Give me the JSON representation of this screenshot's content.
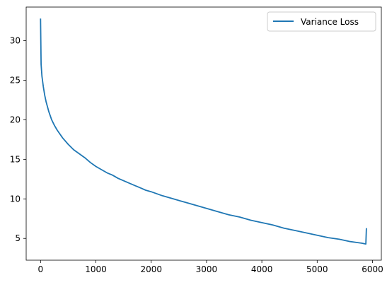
{
  "chart_data": {
    "type": "line",
    "title": "",
    "xlabel": "",
    "ylabel": "",
    "xlim": [
      -260,
      6160
    ],
    "ylim": [
      2.25,
      34.25
    ],
    "xticks": [
      0,
      1000,
      2000,
      3000,
      4000,
      5000,
      6000
    ],
    "yticks": [
      5,
      10,
      15,
      20,
      25,
      30
    ],
    "grid": false,
    "legend": "top-right",
    "colors": {
      "series": "#1f77b4",
      "axes": "#000000",
      "legend_border": "#cccccc"
    },
    "series": [
      {
        "name": "Variance Loss",
        "x": [
          0,
          10,
          25,
          50,
          75,
          100,
          150,
          200,
          250,
          300,
          400,
          500,
          600,
          700,
          800,
          900,
          1000,
          1100,
          1200,
          1300,
          1400,
          1500,
          1600,
          1700,
          1800,
          1900,
          2000,
          2200,
          2400,
          2600,
          2800,
          3000,
          3200,
          3400,
          3600,
          3800,
          4000,
          4200,
          4400,
          4600,
          4800,
          5000,
          5200,
          5400,
          5600,
          5800,
          5880,
          5890
        ],
        "y": [
          32.8,
          27.0,
          25.5,
          24.2,
          23.1,
          22.3,
          21.0,
          20.0,
          19.3,
          18.7,
          17.7,
          16.9,
          16.2,
          15.7,
          15.2,
          14.6,
          14.1,
          13.7,
          13.3,
          13.0,
          12.6,
          12.3,
          12.0,
          11.7,
          11.4,
          11.1,
          10.9,
          10.4,
          10.0,
          9.6,
          9.2,
          8.8,
          8.4,
          8.0,
          7.7,
          7.3,
          7.0,
          6.7,
          6.3,
          6.0,
          5.7,
          5.4,
          5.1,
          4.9,
          4.6,
          4.4,
          4.3,
          6.3
        ]
      }
    ]
  }
}
